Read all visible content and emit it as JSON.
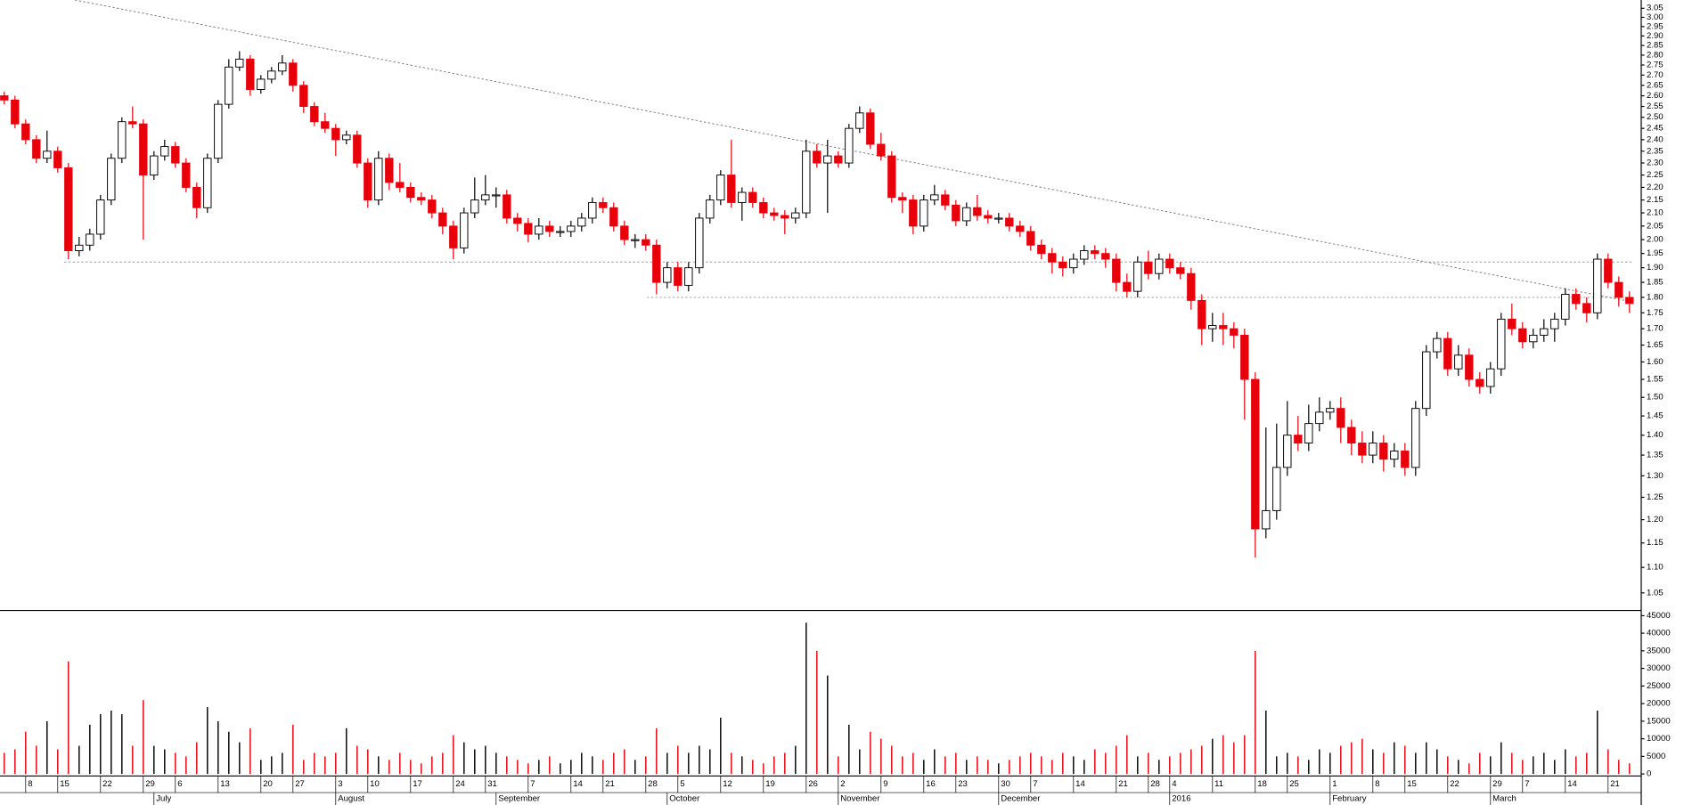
{
  "chart_data": {
    "type": "candlestick",
    "log_scale": true,
    "up_color": "#ffffff",
    "down_color": "#e8000b",
    "wick_color": "#000000",
    "ylim": [
      1.05,
      3.05
    ],
    "yticks": [
      1.05,
      {
        "value": 1.1,
        "label": "1.10"
      },
      1.15,
      {
        "value": 1.2,
        "label": "1.20"
      },
      1.25,
      {
        "value": 1.3,
        "label": "1.30"
      },
      1.35,
      {
        "value": 1.4,
        "label": "1.40"
      },
      1.45,
      {
        "value": 1.5,
        "label": "1.50"
      },
      1.55,
      {
        "value": 1.6,
        "label": "1.60"
      },
      1.65,
      {
        "value": 1.7,
        "label": "1.70"
      },
      1.75,
      {
        "value": 1.8,
        "label": "1.80"
      },
      1.85,
      {
        "value": 1.9,
        "label": "1.90"
      },
      1.95,
      {
        "value": 2,
        "label": "2.00"
      },
      2.05,
      {
        "value": 2.1,
        "label": "2.10"
      },
      2.15,
      {
        "value": 2.2,
        "label": "2.20"
      },
      2.25,
      {
        "value": 2.3,
        "label": "2.30"
      },
      2.35,
      {
        "value": 2.4,
        "label": "2.40"
      },
      2.45,
      {
        "value": 2.5,
        "label": "2.50"
      },
      2.55,
      {
        "value": 2.6,
        "label": "2.60"
      },
      2.65,
      {
        "value": 2.7,
        "label": "2.70"
      },
      2.75,
      {
        "value": 2.8,
        "label": "2.80"
      },
      2.85,
      {
        "value": 2.9,
        "label": "2.90"
      },
      2.95,
      {
        "value": 3,
        "label": "3.00"
      },
      3.05
    ],
    "support_levels": [
      1.92,
      1.8
    ],
    "volume_ylim": [
      0,
      45000
    ],
    "volume_ticks": [
      0,
      5000,
      10000,
      15000,
      20000,
      25000,
      30000,
      35000,
      40000,
      45000
    ],
    "categories": [
      null,
      null,
      "8",
      null,
      null,
      "15",
      null,
      null,
      null,
      "22",
      null,
      null,
      null,
      "29",
      null,
      null,
      "6",
      null,
      null,
      null,
      "13",
      null,
      null,
      null,
      "20",
      null,
      null,
      "27",
      null,
      null,
      null,
      "3",
      null,
      null,
      "10",
      null,
      null,
      null,
      "17",
      null,
      null,
      null,
      "24",
      null,
      null,
      "31",
      null,
      null,
      null,
      "7",
      null,
      null,
      null,
      "14",
      null,
      null,
      "21",
      null,
      null,
      null,
      "28",
      null,
      null,
      "5",
      null,
      null,
      null,
      "12",
      null,
      null,
      null,
      "19",
      null,
      null,
      null,
      "26",
      null,
      null,
      "2",
      null,
      null,
      null,
      "9",
      null,
      null,
      null,
      "16",
      null,
      null,
      "23",
      null,
      null,
      null,
      "30",
      null,
      null,
      "7",
      null,
      null,
      null,
      "14",
      null,
      null,
      null,
      "21",
      null,
      null,
      "28",
      null,
      "4",
      null,
      null,
      null,
      "11",
      null,
      null,
      null,
      "18",
      null,
      null,
      "25",
      null,
      null,
      null,
      "1",
      null,
      null,
      null,
      "8",
      null,
      null,
      "15",
      null,
      null,
      null,
      "22",
      null,
      null,
      null,
      "29",
      null,
      null,
      "7",
      null,
      null,
      null,
      "14",
      null,
      null,
      null,
      "21",
      null,
      null
    ],
    "months": [
      null,
      null,
      null,
      null,
      null,
      null,
      null,
      null,
      null,
      null,
      null,
      null,
      null,
      null,
      "July",
      null,
      null,
      null,
      null,
      null,
      null,
      null,
      null,
      null,
      null,
      null,
      null,
      null,
      null,
      null,
      null,
      "August",
      null,
      null,
      null,
      null,
      null,
      null,
      null,
      null,
      null,
      null,
      null,
      null,
      null,
      null,
      "September",
      null,
      null,
      null,
      null,
      null,
      null,
      null,
      null,
      null,
      null,
      null,
      null,
      null,
      null,
      null,
      "October",
      null,
      null,
      null,
      null,
      null,
      null,
      null,
      null,
      null,
      null,
      null,
      null,
      null,
      null,
      null,
      "November",
      null,
      null,
      null,
      null,
      null,
      null,
      null,
      null,
      null,
      null,
      null,
      null,
      null,
      null,
      "December",
      null,
      null,
      null,
      null,
      null,
      null,
      null,
      null,
      null,
      null,
      null,
      null,
      null,
      null,
      null,
      "2016",
      null,
      null,
      null,
      null,
      null,
      null,
      null,
      null,
      null,
      null,
      null,
      null,
      null,
      null,
      "February",
      null,
      null,
      null,
      null,
      null,
      null,
      null,
      null,
      null,
      null,
      null,
      null,
      null,
      null,
      "March",
      null,
      null,
      null,
      null,
      null,
      null,
      null,
      null,
      null,
      null,
      null,
      null,
      null
    ],
    "ohlc": [
      [
        2.6,
        2.62,
        2.56,
        2.58
      ],
      [
        2.58,
        2.6,
        2.45,
        2.47
      ],
      [
        2.47,
        2.49,
        2.38,
        2.4
      ],
      [
        2.4,
        2.42,
        2.3,
        2.32
      ],
      [
        2.32,
        2.44,
        2.3,
        2.35
      ],
      [
        2.35,
        2.37,
        2.26,
        2.28
      ],
      [
        2.28,
        2.3,
        1.93,
        1.96
      ],
      [
        1.96,
        2.01,
        1.94,
        1.98
      ],
      [
        1.98,
        2.04,
        1.96,
        2.02
      ],
      [
        2.02,
        2.17,
        2.0,
        2.15
      ],
      [
        2.15,
        2.34,
        2.13,
        2.32
      ],
      [
        2.32,
        2.5,
        2.3,
        2.48
      ],
      [
        2.48,
        2.55,
        2.45,
        2.47
      ],
      [
        2.47,
        2.49,
        2.0,
        2.25
      ],
      [
        2.25,
        2.35,
        2.23,
        2.33
      ],
      [
        2.33,
        2.4,
        2.31,
        2.37
      ],
      [
        2.37,
        2.39,
        2.28,
        2.3
      ],
      [
        2.3,
        2.32,
        2.18,
        2.2
      ],
      [
        2.2,
        2.22,
        2.08,
        2.12
      ],
      [
        2.12,
        2.34,
        2.1,
        2.32
      ],
      [
        2.32,
        2.58,
        2.3,
        2.56
      ],
      [
        2.56,
        2.78,
        2.54,
        2.74
      ],
      [
        2.74,
        2.82,
        2.72,
        2.78
      ],
      [
        2.78,
        2.8,
        2.6,
        2.63
      ],
      [
        2.63,
        2.7,
        2.61,
        2.68
      ],
      [
        2.68,
        2.74,
        2.66,
        2.72
      ],
      [
        2.72,
        2.8,
        2.7,
        2.76
      ],
      [
        2.76,
        2.78,
        2.62,
        2.65
      ],
      [
        2.65,
        2.67,
        2.52,
        2.55
      ],
      [
        2.55,
        2.57,
        2.46,
        2.48
      ],
      [
        2.48,
        2.52,
        2.43,
        2.45
      ],
      [
        2.45,
        2.47,
        2.33,
        2.4
      ],
      [
        2.4,
        2.44,
        2.38,
        2.42
      ],
      [
        2.42,
        2.44,
        2.28,
        2.3
      ],
      [
        2.3,
        2.32,
        2.12,
        2.15
      ],
      [
        2.15,
        2.35,
        2.13,
        2.32
      ],
      [
        2.32,
        2.34,
        2.19,
        2.22
      ],
      [
        2.22,
        2.3,
        2.18,
        2.2
      ],
      [
        2.2,
        2.22,
        2.14,
        2.16
      ],
      [
        2.16,
        2.18,
        2.13,
        2.15
      ],
      [
        2.15,
        2.17,
        2.08,
        2.1
      ],
      [
        2.1,
        2.12,
        2.02,
        2.05
      ],
      [
        2.05,
        2.07,
        1.93,
        1.97
      ],
      [
        1.97,
        2.12,
        1.95,
        2.1
      ],
      [
        2.1,
        2.24,
        2.08,
        2.15
      ],
      [
        2.15,
        2.25,
        2.13,
        2.17
      ],
      [
        2.17,
        2.2,
        2.12,
        2.17
      ],
      [
        2.17,
        2.19,
        2.06,
        2.08
      ],
      [
        2.08,
        2.1,
        2.03,
        2.06
      ],
      [
        2.06,
        2.08,
        1.99,
        2.02
      ],
      [
        2.02,
        2.08,
        2.0,
        2.05
      ],
      [
        2.05,
        2.07,
        2.01,
        2.03
      ],
      [
        2.03,
        2.05,
        2.01,
        2.03
      ],
      [
        2.03,
        2.07,
        2.01,
        2.05
      ],
      [
        2.05,
        2.1,
        2.03,
        2.08
      ],
      [
        2.08,
        2.16,
        2.06,
        2.14
      ],
      [
        2.14,
        2.16,
        2.1,
        2.12
      ],
      [
        2.12,
        2.14,
        2.03,
        2.05
      ],
      [
        2.05,
        2.07,
        1.98,
        2.0
      ],
      [
        2.0,
        2.02,
        1.97,
        2.0
      ],
      [
        2.0,
        2.02,
        1.96,
        1.98
      ],
      [
        1.98,
        2.0,
        1.81,
        1.85
      ],
      [
        1.85,
        1.92,
        1.83,
        1.9
      ],
      [
        1.9,
        1.92,
        1.82,
        1.84
      ],
      [
        1.84,
        1.92,
        1.82,
        1.9
      ],
      [
        1.9,
        2.1,
        1.88,
        2.08
      ],
      [
        2.08,
        2.17,
        2.06,
        2.15
      ],
      [
        2.15,
        2.27,
        2.13,
        2.25
      ],
      [
        2.25,
        2.4,
        2.12,
        2.14
      ],
      [
        2.14,
        2.2,
        2.07,
        2.18
      ],
      [
        2.18,
        2.2,
        2.12,
        2.14
      ],
      [
        2.14,
        2.16,
        2.08,
        2.1
      ],
      [
        2.1,
        2.12,
        2.07,
        2.09
      ],
      [
        2.09,
        2.11,
        2.02,
        2.08
      ],
      [
        2.08,
        2.12,
        2.06,
        2.1
      ],
      [
        2.1,
        2.4,
        2.08,
        2.35
      ],
      [
        2.35,
        2.38,
        2.28,
        2.3
      ],
      [
        2.3,
        2.4,
        2.1,
        2.33
      ],
      [
        2.33,
        2.35,
        2.28,
        2.3
      ],
      [
        2.3,
        2.47,
        2.28,
        2.45
      ],
      [
        2.45,
        2.55,
        2.43,
        2.52
      ],
      [
        2.52,
        2.54,
        2.36,
        2.38
      ],
      [
        2.38,
        2.43,
        2.31,
        2.33
      ],
      [
        2.33,
        2.35,
        2.14,
        2.16
      ],
      [
        2.16,
        2.18,
        2.1,
        2.15
      ],
      [
        2.15,
        2.17,
        2.02,
        2.05
      ],
      [
        2.05,
        2.17,
        2.03,
        2.15
      ],
      [
        2.15,
        2.21,
        2.13,
        2.17
      ],
      [
        2.17,
        2.19,
        2.11,
        2.13
      ],
      [
        2.13,
        2.15,
        2.05,
        2.07
      ],
      [
        2.07,
        2.14,
        2.05,
        2.12
      ],
      [
        2.12,
        2.17,
        2.07,
        2.09
      ],
      [
        2.09,
        2.11,
        2.06,
        2.08
      ],
      [
        2.08,
        2.1,
        2.06,
        2.08
      ],
      [
        2.08,
        2.1,
        2.03,
        2.05
      ],
      [
        2.05,
        2.07,
        2.01,
        2.03
      ],
      [
        2.03,
        2.05,
        1.96,
        1.98
      ],
      [
        1.98,
        2.0,
        1.93,
        1.95
      ],
      [
        1.95,
        1.97,
        1.88,
        1.92
      ],
      [
        1.92,
        1.94,
        1.87,
        1.9
      ],
      [
        1.9,
        1.95,
        1.88,
        1.93
      ],
      [
        1.93,
        1.98,
        1.91,
        1.96
      ],
      [
        1.96,
        1.98,
        1.93,
        1.95
      ],
      [
        1.95,
        1.97,
        1.9,
        1.93
      ],
      [
        1.93,
        1.95,
        1.82,
        1.85
      ],
      [
        1.85,
        1.88,
        1.8,
        1.82
      ],
      [
        1.82,
        1.94,
        1.8,
        1.92
      ],
      [
        1.92,
        1.96,
        1.86,
        1.88
      ],
      [
        1.88,
        1.95,
        1.86,
        1.93
      ],
      [
        1.93,
        1.95,
        1.88,
        1.9
      ],
      [
        1.9,
        1.92,
        1.86,
        1.88
      ],
      [
        1.88,
        1.9,
        1.76,
        1.79
      ],
      [
        1.79,
        1.81,
        1.65,
        1.7
      ],
      [
        1.7,
        1.75,
        1.66,
        1.71
      ],
      [
        1.71,
        1.75,
        1.65,
        1.7
      ],
      [
        1.7,
        1.72,
        1.64,
        1.68
      ],
      [
        1.68,
        1.7,
        1.44,
        1.55
      ],
      [
        1.55,
        1.57,
        1.12,
        1.18
      ],
      [
        1.18,
        1.42,
        1.16,
        1.22
      ],
      [
        1.22,
        1.43,
        1.2,
        1.32
      ],
      [
        1.32,
        1.49,
        1.3,
        1.4
      ],
      [
        1.4,
        1.45,
        1.36,
        1.38
      ],
      [
        1.38,
        1.48,
        1.36,
        1.43
      ],
      [
        1.43,
        1.5,
        1.41,
        1.46
      ],
      [
        1.46,
        1.49,
        1.44,
        1.47
      ],
      [
        1.47,
        1.5,
        1.38,
        1.42
      ],
      [
        1.42,
        1.44,
        1.35,
        1.38
      ],
      [
        1.38,
        1.41,
        1.33,
        1.35
      ],
      [
        1.35,
        1.41,
        1.33,
        1.38
      ],
      [
        1.38,
        1.4,
        1.31,
        1.34
      ],
      [
        1.34,
        1.38,
        1.32,
        1.36
      ],
      [
        1.36,
        1.38,
        1.3,
        1.32
      ],
      [
        1.32,
        1.49,
        1.3,
        1.47
      ],
      [
        1.47,
        1.65,
        1.45,
        1.63
      ],
      [
        1.63,
        1.69,
        1.61,
        1.67
      ],
      [
        1.67,
        1.69,
        1.56,
        1.58
      ],
      [
        1.58,
        1.65,
        1.56,
        1.62
      ],
      [
        1.62,
        1.64,
        1.53,
        1.55
      ],
      [
        1.55,
        1.57,
        1.51,
        1.53
      ],
      [
        1.53,
        1.6,
        1.51,
        1.58
      ],
      [
        1.58,
        1.75,
        1.56,
        1.73
      ],
      [
        1.73,
        1.78,
        1.68,
        1.7
      ],
      [
        1.7,
        1.72,
        1.64,
        1.66
      ],
      [
        1.66,
        1.7,
        1.64,
        1.68
      ],
      [
        1.68,
        1.73,
        1.66,
        1.7
      ],
      [
        1.7,
        1.75,
        1.66,
        1.73
      ],
      [
        1.73,
        1.83,
        1.71,
        1.81
      ],
      [
        1.81,
        1.83,
        1.76,
        1.78
      ],
      [
        1.78,
        1.8,
        1.72,
        1.75
      ],
      [
        1.75,
        1.95,
        1.73,
        1.93
      ],
      [
        1.93,
        1.95,
        1.83,
        1.85
      ],
      [
        1.85,
        1.87,
        1.77,
        1.8
      ],
      [
        1.8,
        1.82,
        1.75,
        1.78
      ]
    ],
    "volume": [
      6000,
      7000,
      12000,
      8000,
      15000,
      7000,
      32000,
      8000,
      14000,
      17000,
      18000,
      17000,
      8000,
      21000,
      8000,
      7000,
      6000,
      5000,
      9000,
      19000,
      15000,
      12000,
      9000,
      13000,
      4000,
      5000,
      6000,
      14000,
      4000,
      6000,
      5000,
      6000,
      13000,
      8000,
      7000,
      5000,
      4000,
      6000,
      4000,
      3000,
      5000,
      6000,
      11000,
      9000,
      7000,
      8000,
      6000,
      5000,
      4000,
      3000,
      4000,
      5000,
      3000,
      4000,
      6000,
      5000,
      4000,
      6000,
      7000,
      4000,
      5000,
      13000,
      6000,
      8000,
      6000,
      8000,
      7000,
      16000,
      6000,
      5000,
      4000,
      3000,
      5000,
      6000,
      8000,
      43000,
      35000,
      28000,
      5000,
      14000,
      7000,
      12000,
      10000,
      8000,
      5000,
      6000,
      4000,
      7000,
      5000,
      6000,
      4000,
      5000,
      4000,
      3000,
      4000,
      5000,
      6000,
      5000,
      4000,
      6000,
      5000,
      4000,
      7000,
      6000,
      8000,
      11000,
      5000,
      6000,
      4000,
      5000,
      6000,
      7000,
      8000,
      10000,
      11000,
      9000,
      11000,
      35000,
      18000,
      5000,
      6000,
      5000,
      4000,
      7000,
      6000,
      8000,
      9000,
      10000,
      7000,
      6000,
      9000,
      8000,
      6000,
      9000,
      7000,
      5000,
      4000,
      3000,
      6000,
      5000,
      9000,
      6000,
      4000,
      5000,
      6000,
      4000,
      7000,
      5000,
      6000,
      18000,
      7000,
      4000,
      3000
    ]
  }
}
